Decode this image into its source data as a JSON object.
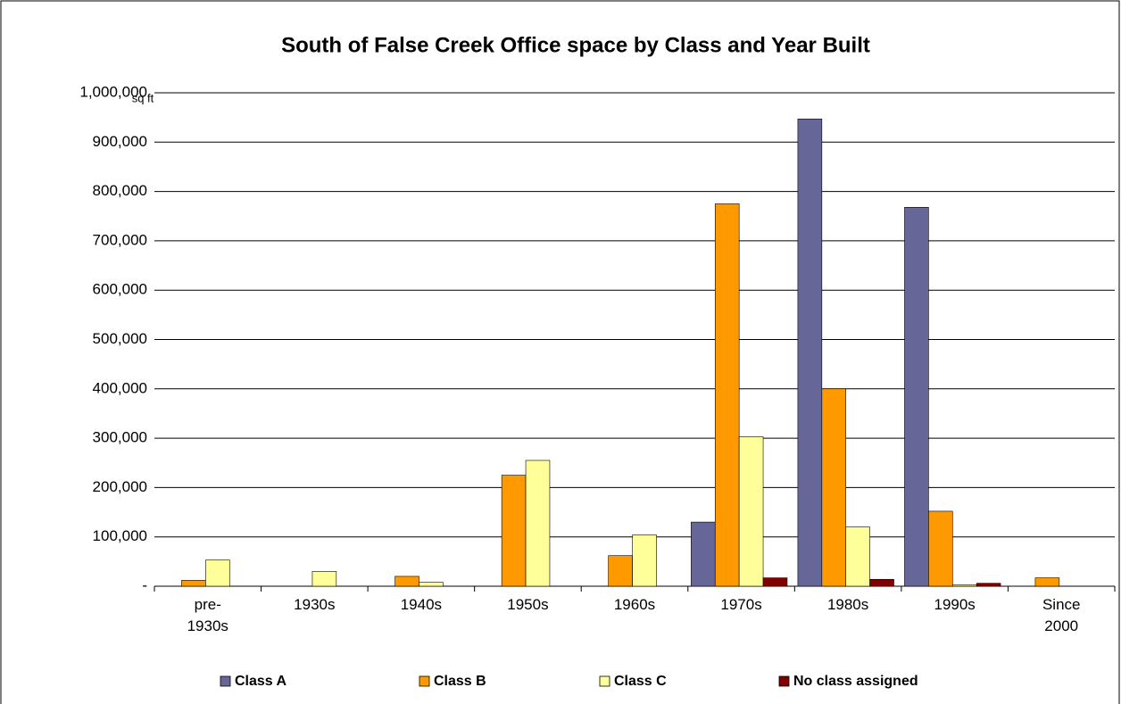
{
  "chart_data": {
    "type": "bar",
    "title": "South of False Creek Office space by Class and Year Built",
    "y_label": "sq ft",
    "categories": [
      "pre-1930s",
      "1930s",
      "1940s",
      "1950s",
      "1960s",
      "1970s",
      "1980s",
      "1990s",
      "Since 2000"
    ],
    "series": [
      {
        "name": "Class A",
        "color": "#666699",
        "values": [
          0,
          0,
          0,
          0,
          0,
          130000,
          947000,
          768000,
          0
        ]
      },
      {
        "name": "Class B",
        "color": "#ff9900",
        "values": [
          12000,
          0,
          20000,
          225000,
          62000,
          775000,
          400000,
          152000,
          17000
        ]
      },
      {
        "name": "Class C",
        "color": "#ffff99",
        "values": [
          53000,
          30000,
          8000,
          255000,
          104000,
          303000,
          120000,
          3000,
          0
        ]
      },
      {
        "name": "No class assigned",
        "color": "#800000",
        "values": [
          0,
          0,
          0,
          0,
          0,
          17000,
          14000,
          6000,
          0
        ]
      }
    ],
    "ylim": [
      0,
      1000000
    ],
    "yticks": [
      {
        "value": 0,
        "label": "-"
      },
      {
        "value": 100000,
        "label": "100,000"
      },
      {
        "value": 200000,
        "label": "200,000"
      },
      {
        "value": 300000,
        "label": "300,000"
      },
      {
        "value": 400000,
        "label": "400,000"
      },
      {
        "value": 500000,
        "label": "500,000"
      },
      {
        "value": 600000,
        "label": "600,000"
      },
      {
        "value": 700000,
        "label": "700,000"
      },
      {
        "value": 800000,
        "label": "800,000"
      },
      {
        "value": 900000,
        "label": "900,000"
      },
      {
        "value": 1000000,
        "label": "1,000,000"
      }
    ],
    "grid": true,
    "legend": "bottom"
  }
}
